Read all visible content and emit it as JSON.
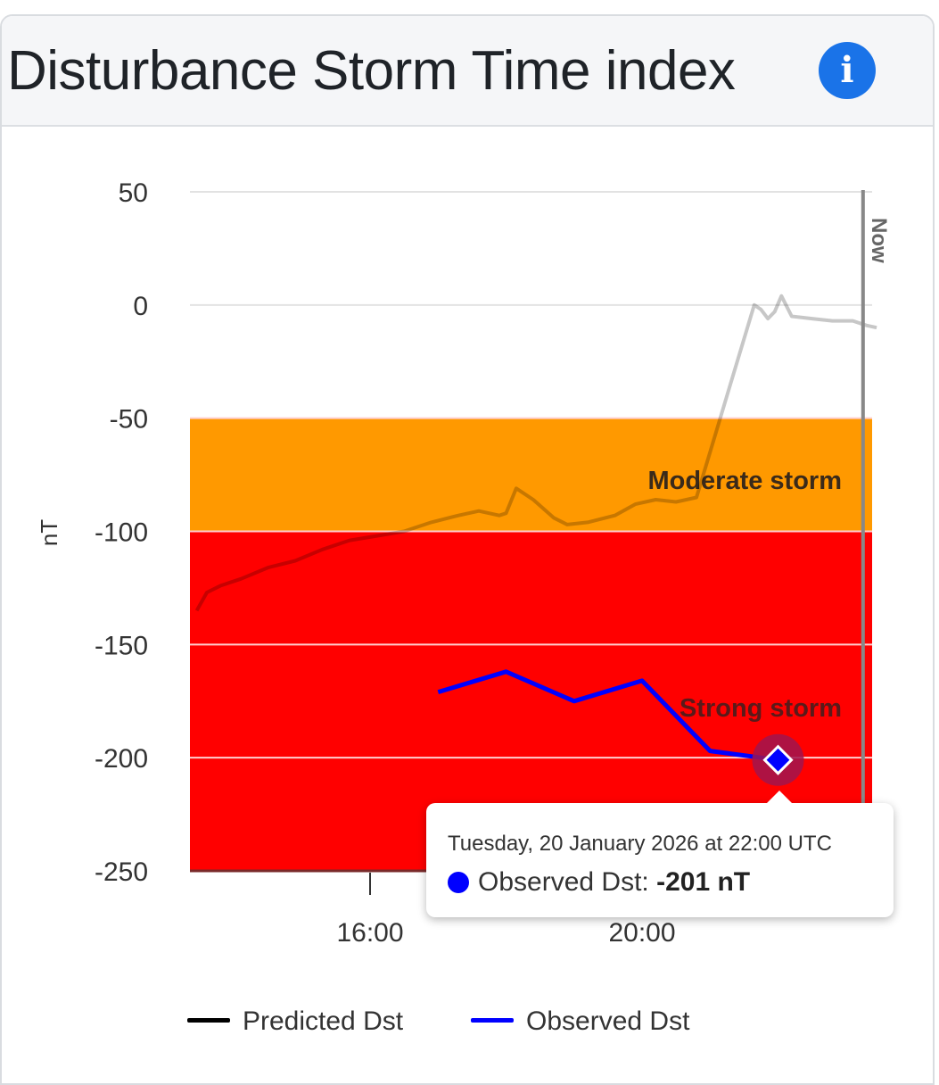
{
  "header": {
    "title": "Disturbance Storm Time index",
    "info_icon": "info-icon"
  },
  "chart_data": {
    "type": "line",
    "title": "Disturbance Storm Time index",
    "ylabel": "nT",
    "ylim": [
      -250,
      50
    ],
    "yticks": [
      "50",
      "0",
      "-50",
      "-100",
      "-150",
      "-200",
      "-250"
    ],
    "ytick_values": [
      50,
      0,
      -50,
      -100,
      -150,
      -200,
      -250
    ],
    "xlim_hours": [
      13.4,
      23.45
    ],
    "xticks": [
      "16:00",
      "20:00"
    ],
    "xtick_hours": [
      16,
      20
    ],
    "grid": true,
    "legend_position": "bottom",
    "bands": [
      {
        "label": "Moderate storm",
        "from": -100,
        "to": -50,
        "color": "#ff9900"
      },
      {
        "label": "Strong storm",
        "from": -250,
        "to": -100,
        "color": "#ff0000"
      }
    ],
    "now_marker": {
      "label": "Now",
      "hour": 23.25
    },
    "series": [
      {
        "name": "Predicted Dst",
        "color": "#000000",
        "x_hours": [
          13.45,
          13.6,
          13.8,
          14.1,
          14.5,
          14.9,
          15.3,
          15.7,
          16.1,
          16.5,
          16.9,
          17.3,
          17.6,
          17.9,
          18.0,
          18.15,
          18.4,
          18.7,
          18.9,
          19.2,
          19.6,
          19.9,
          20.2,
          20.5,
          20.8,
          21.0,
          21.3,
          21.65,
          21.75,
          21.85,
          21.95,
          22.05,
          22.2,
          22.5,
          22.8,
          23.1,
          23.3,
          23.45
        ],
        "values": [
          -135,
          -127,
          -124,
          -121,
          -116,
          -113,
          -108,
          -104,
          -102,
          -100,
          -96,
          -93,
          -91,
          -93,
          -92,
          -81,
          -86,
          -94,
          -97,
          -96,
          -93,
          -88,
          -86,
          -87,
          -85,
          -65,
          -35,
          0,
          -2,
          -6,
          -3,
          4,
          -5,
          -6,
          -7,
          -7,
          -9,
          -10
        ]
      },
      {
        "name": "Observed Dst",
        "color": "#0000ff",
        "x_hours": [
          17.0,
          18.0,
          19.0,
          20.0,
          21.0,
          22.0
        ],
        "values": [
          -171,
          -162,
          -175,
          -166,
          -197,
          -201
        ]
      }
    ],
    "highlight": {
      "series": "Observed Dst",
      "x_hour": 22.0,
      "value": -201
    }
  },
  "tooltip": {
    "date": "Tuesday, 20 January 2026 at 22:00 UTC",
    "series_label": "Observed Dst:",
    "value": "-201 nT"
  },
  "legend": {
    "items": [
      {
        "label": "Predicted Dst",
        "color": "#000000"
      },
      {
        "label": "Observed Dst",
        "color": "#0000ff"
      }
    ]
  }
}
